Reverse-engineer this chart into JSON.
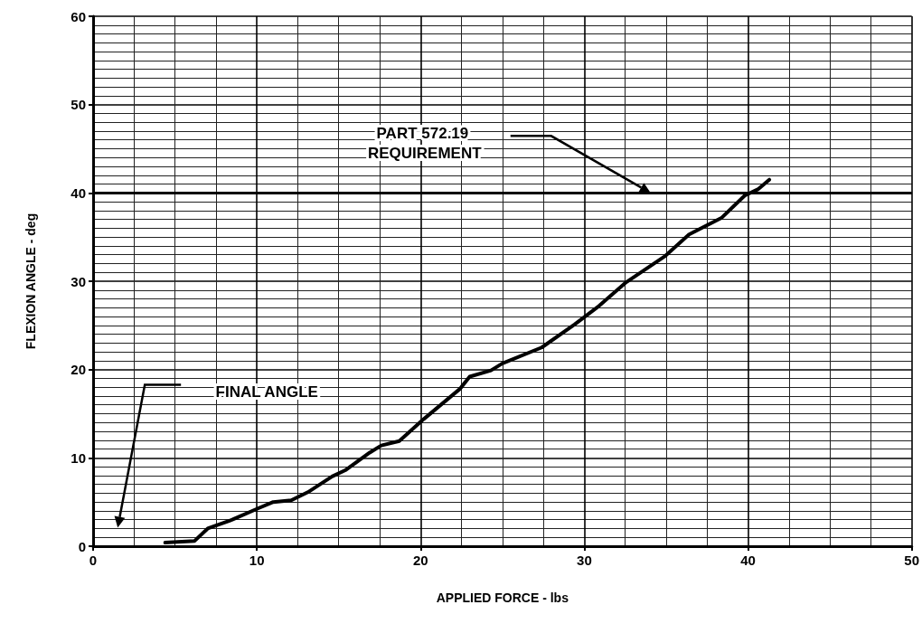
{
  "chart_data": {
    "type": "line",
    "xlabel": "APPLIED FORCE - lbs",
    "ylabel": "FLEXION ANGLE - deg",
    "xlim": [
      0,
      50
    ],
    "xticks": [
      0,
      10,
      20,
      30,
      40,
      50
    ],
    "ylim": [
      0,
      60
    ],
    "yticks": [
      0,
      10,
      20,
      30,
      40,
      50,
      60
    ],
    "grid": true,
    "marker": "none",
    "line_style": "solid",
    "series": [
      {
        "color": "#000000",
        "x": [
          4.4,
          6.2,
          7.0,
          8.5,
          10.1,
          11.0,
          12.1,
          13.2,
          14.6,
          15.4,
          16.9,
          17.6,
          18.7,
          20.2,
          22.4,
          23.0,
          24.3,
          25.0,
          27.4,
          29.4,
          30.9,
          32.5,
          34.9,
          36.4,
          38.4,
          39.8,
          40.6,
          41.3
        ],
        "values": [
          0.4,
          0.6,
          2.0,
          3.0,
          4.3,
          5.0,
          5.2,
          6.2,
          7.9,
          8.6,
          10.6,
          11.4,
          11.9,
          14.4,
          17.8,
          19.2,
          19.9,
          20.7,
          22.5,
          25.1,
          27.2,
          29.8,
          32.8,
          35.3,
          37.2,
          39.7,
          40.4,
          41.5
        ]
      }
    ],
    "ref_lines": [
      {
        "axis": "y",
        "value": 40,
        "label": "PART 572.19 REQUIREMENT",
        "color": "#000000"
      }
    ],
    "annotations": [
      "FINAL ANGLE"
    ]
  }
}
